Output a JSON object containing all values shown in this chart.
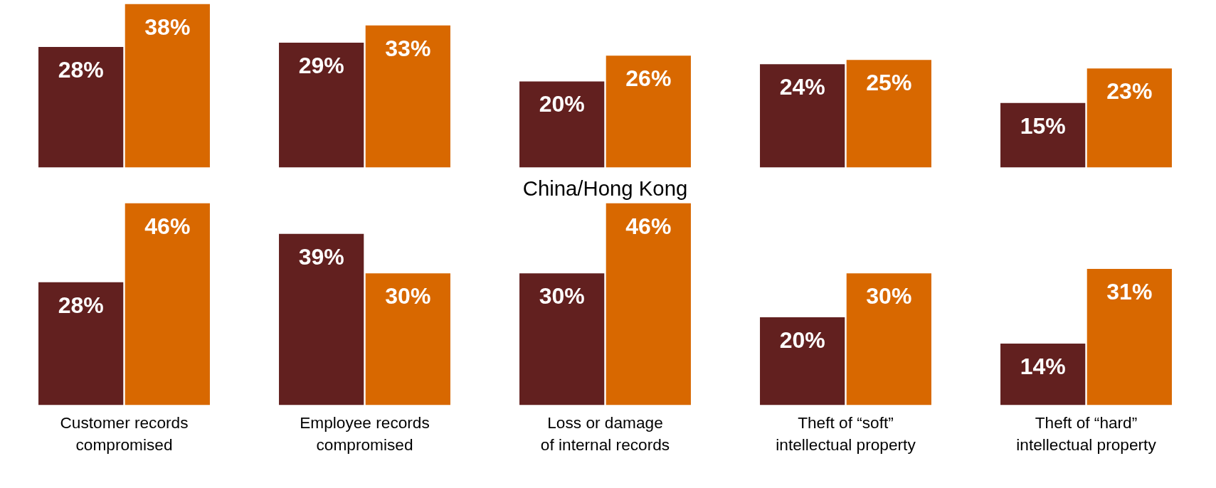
{
  "chart_data": [
    {
      "type": "bar",
      "categories": [
        null,
        null,
        null,
        null,
        null
      ],
      "ylim": [
        0,
        38
      ],
      "tick_labels": false,
      "series": [
        {
          "color": "#62201f",
          "values": [
            28,
            29,
            20,
            24,
            15
          ],
          "value_labels": [
            "28%",
            "29%",
            "20%",
            "24%",
            "15%"
          ]
        },
        {
          "color": "#d86800",
          "values": [
            38,
            33,
            26,
            25,
            23
          ],
          "value_labels": [
            "38%",
            "33%",
            "26%",
            "25%",
            "23%"
          ]
        }
      ]
    },
    {
      "type": "bar",
      "title": "China/Hong Kong",
      "categories": [
        "Customer records\ncompromised",
        "Employee records\ncompromised",
        "Loss or damage\nof internal records",
        "Theft of “soft”\nintellectual property",
        "Theft of “hard”\nintellectual property"
      ],
      "ylim": [
        0,
        46
      ],
      "tick_labels": "x",
      "series": [
        {
          "color": "#62201f",
          "values": [
            28,
            39,
            30,
            20,
            14
          ],
          "value_labels": [
            "28%",
            "39%",
            "30%",
            "20%",
            "14%"
          ]
        },
        {
          "color": "#d86800",
          "values": [
            46,
            30,
            46,
            30,
            31
          ],
          "value_labels": [
            "46%",
            "30%",
            "46%",
            "30%",
            "31%"
          ]
        }
      ]
    }
  ]
}
